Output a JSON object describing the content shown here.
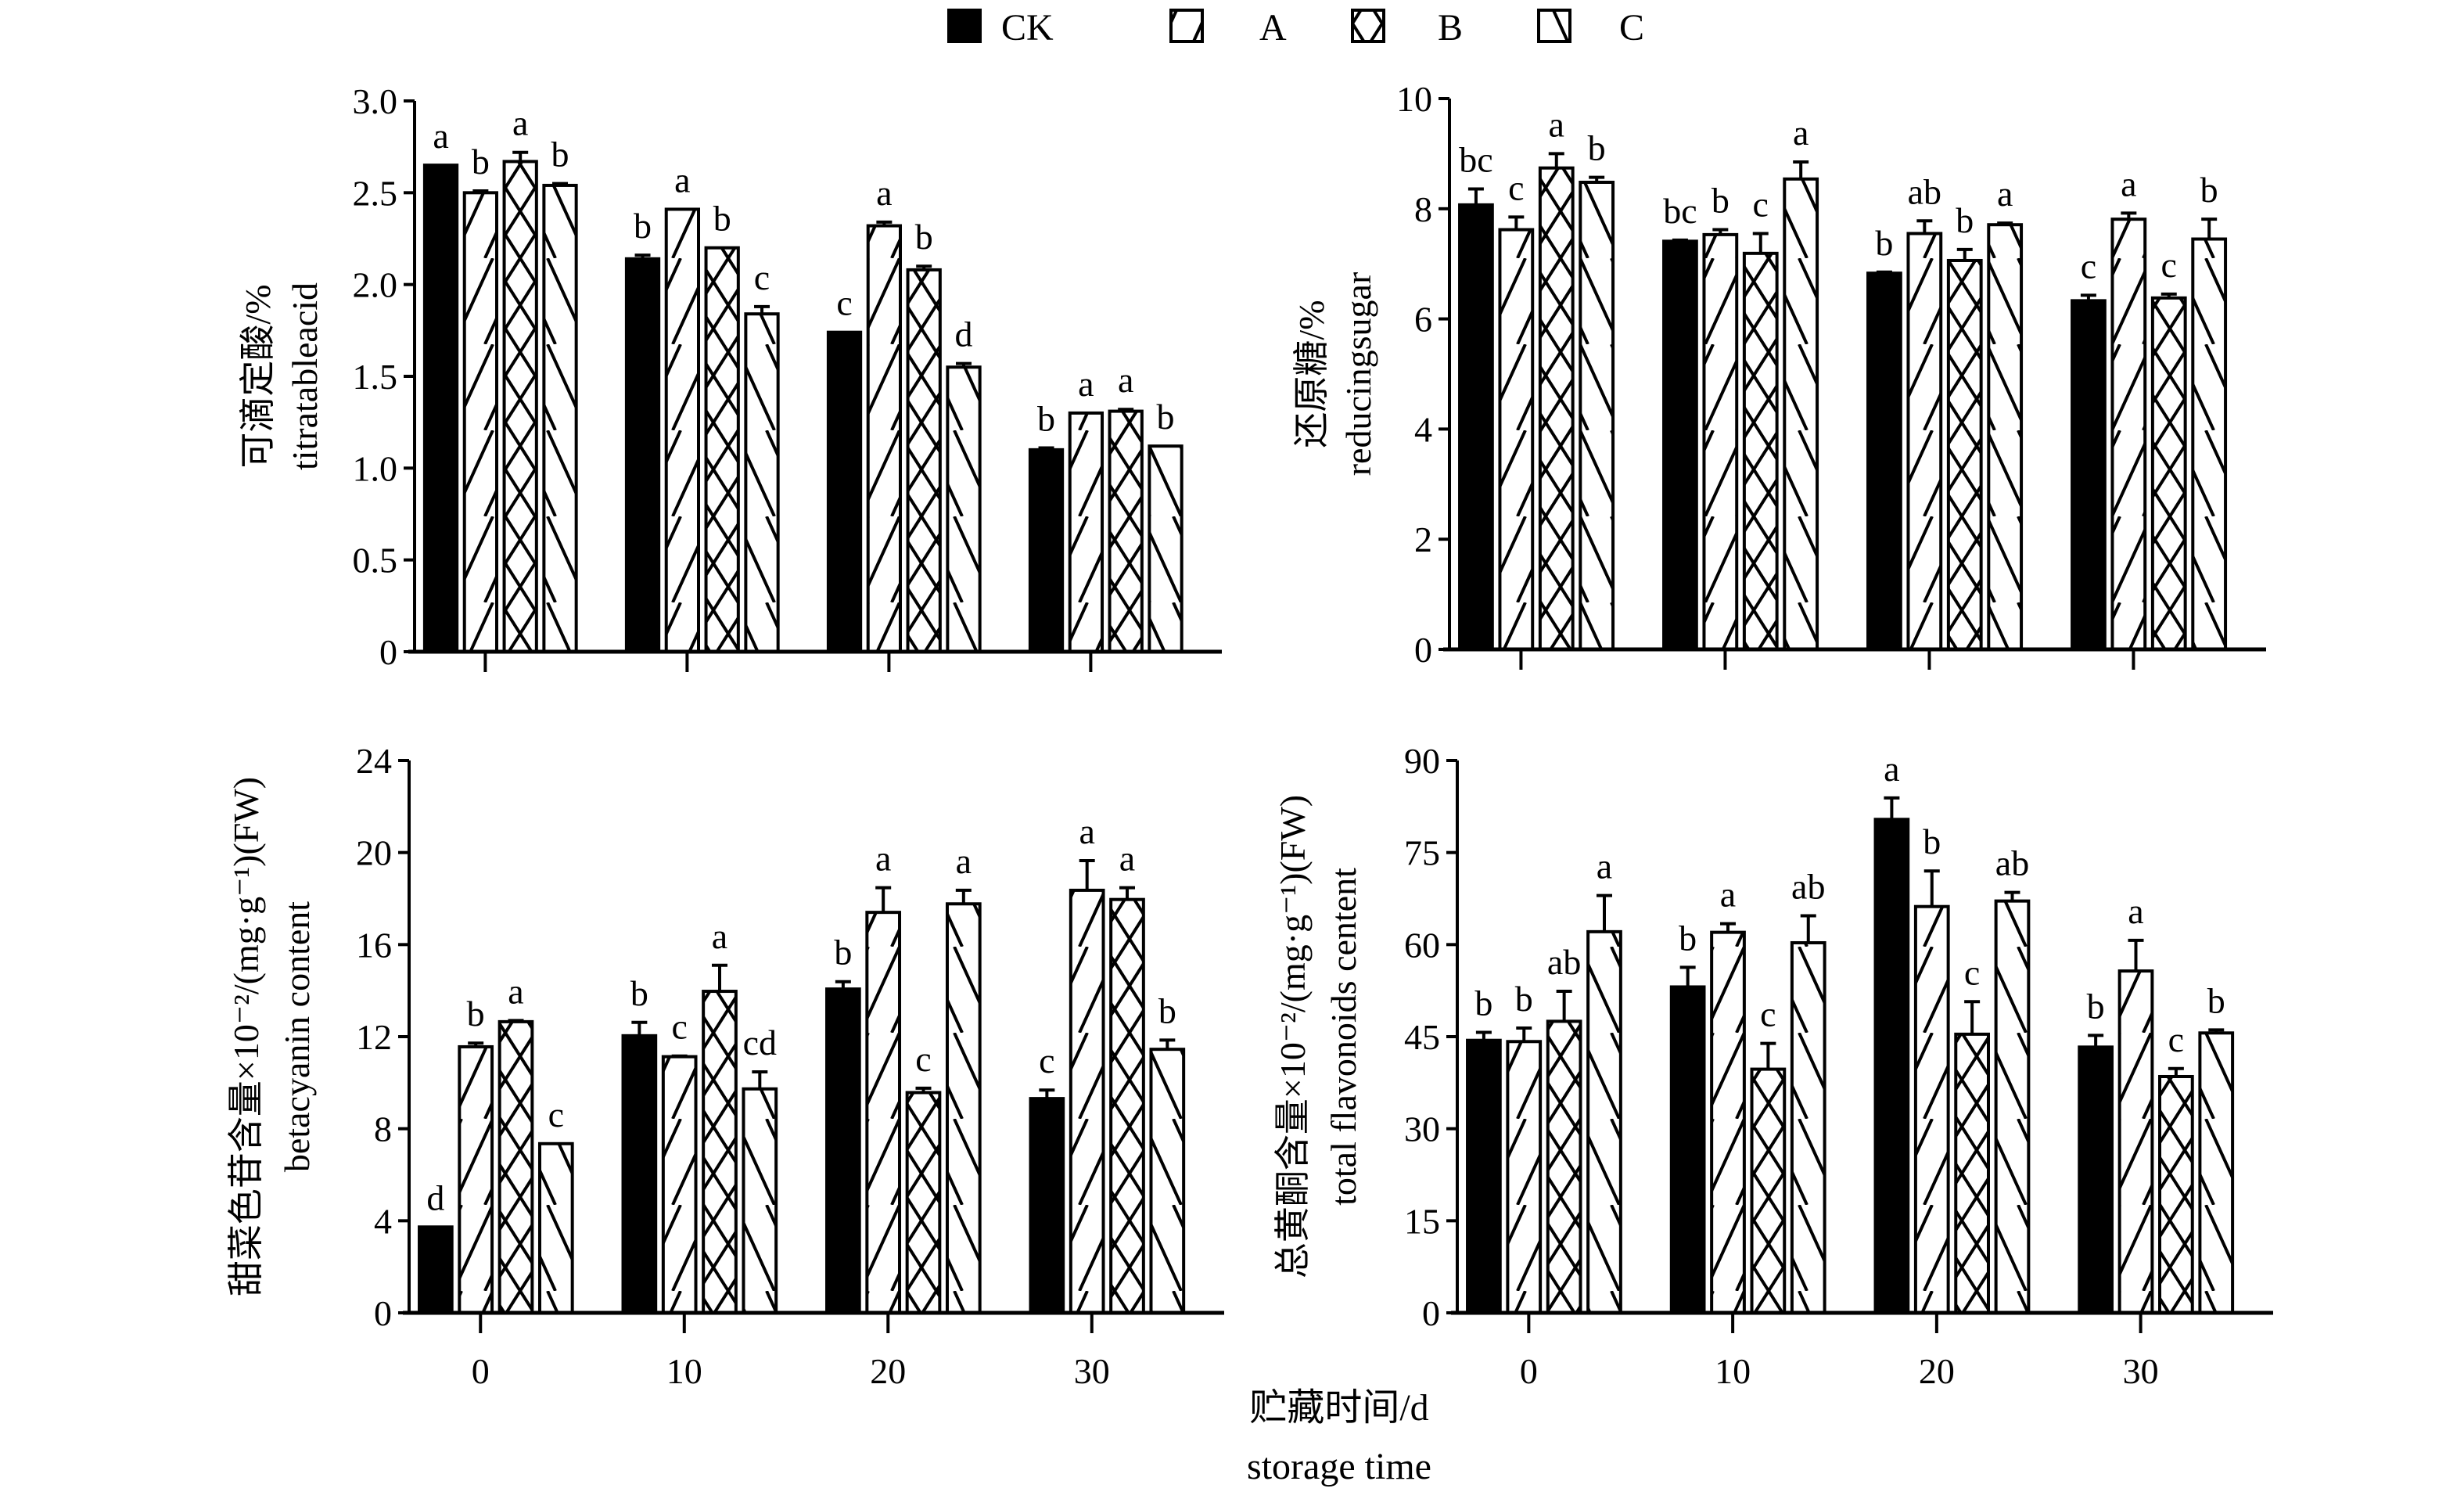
{
  "legend": {
    "items": [
      {
        "label": "CK",
        "pattern": "solid"
      },
      {
        "label": "A",
        "pattern": "forward-diagonal"
      },
      {
        "label": "B",
        "pattern": "crosshatch"
      },
      {
        "label": "C",
        "pattern": "backward-diagonal"
      }
    ]
  },
  "shared_xlabel": {
    "line1": "贮藏时间/d",
    "line2": "storage time"
  },
  "chart_data": [
    {
      "type": "bar",
      "panel": "top-left",
      "title": "",
      "ylabel_cn": "可滴定酸/%",
      "ylabel_en": "titratableacid",
      "xlabel": "",
      "categories": [
        "0",
        "10",
        "20",
        "30"
      ],
      "show_category_labels": false,
      "ylim": [
        0,
        3.0
      ],
      "yticks": [
        0,
        0.5,
        1.0,
        1.5,
        2.0,
        2.5,
        3.0
      ],
      "ytick_labels": [
        "0",
        "0.5",
        "1.0",
        "1.5",
        "2.0",
        "2.5",
        "3.0"
      ],
      "grid": false,
      "series": [
        {
          "name": "CK",
          "values": [
            2.65,
            2.14,
            1.74,
            1.1
          ],
          "errors": [
            0.0,
            0.02,
            0.0,
            0.01
          ],
          "letters": [
            "a",
            "b",
            "c",
            "b"
          ]
        },
        {
          "name": "A",
          "values": [
            2.5,
            2.41,
            2.32,
            1.3
          ],
          "errors": [
            0.01,
            0.0,
            0.02,
            0.0
          ],
          "letters": [
            "b",
            "a",
            "a",
            "a"
          ]
        },
        {
          "name": "B",
          "values": [
            2.67,
            2.2,
            2.08,
            1.31
          ],
          "errors": [
            0.05,
            0.0,
            0.02,
            0.01
          ],
          "letters": [
            "a",
            "b",
            "b",
            "a"
          ]
        },
        {
          "name": "C",
          "values": [
            2.54,
            1.84,
            1.55,
            1.12
          ],
          "errors": [
            0.01,
            0.04,
            0.02,
            0.0
          ],
          "letters": [
            "b",
            "c",
            "d",
            "b"
          ]
        }
      ]
    },
    {
      "type": "bar",
      "panel": "top-right",
      "title": "",
      "ylabel_cn": "还原糖/%",
      "ylabel_en": "reducingsugar",
      "xlabel": "",
      "categories": [
        "0",
        "10",
        "20",
        "30"
      ],
      "show_category_labels": false,
      "ylim": [
        0,
        10
      ],
      "yticks": [
        0,
        2,
        4,
        6,
        8,
        10
      ],
      "ytick_labels": [
        "0",
        "2",
        "4",
        "6",
        "8",
        "10"
      ],
      "grid": false,
      "series": [
        {
          "name": "CK",
          "values": [
            8.07,
            7.41,
            6.83,
            6.33
          ],
          "errors": [
            0.29,
            0.02,
            0.02,
            0.1
          ],
          "letters": [
            "bc",
            "bc",
            "b",
            "c"
          ]
        },
        {
          "name": "A",
          "values": [
            7.62,
            7.53,
            7.55,
            7.81
          ],
          "errors": [
            0.23,
            0.09,
            0.23,
            0.11
          ],
          "letters": [
            "c",
            "b",
            "ab",
            "a"
          ]
        },
        {
          "name": "B",
          "values": [
            8.74,
            7.19,
            7.06,
            6.38
          ],
          "errors": [
            0.26,
            0.36,
            0.2,
            0.07
          ],
          "letters": [
            "a",
            "c",
            "b",
            "c"
          ]
        },
        {
          "name": "C",
          "values": [
            8.48,
            8.54,
            7.71,
            7.45
          ],
          "errors": [
            0.09,
            0.31,
            0.03,
            0.36
          ],
          "letters": [
            "b",
            "a",
            "a",
            "b"
          ]
        }
      ]
    },
    {
      "type": "bar",
      "panel": "bottom-left",
      "title": "",
      "ylabel_cn": "甜菜色苷含量×10⁻²/(mg·g⁻¹)(FW)",
      "ylabel_en": "betacyanin content",
      "xlabel": "",
      "categories": [
        "0",
        "10",
        "20",
        "30"
      ],
      "show_category_labels": true,
      "ylim": [
        0,
        24
      ],
      "yticks": [
        0,
        4,
        8,
        12,
        16,
        20,
        24
      ],
      "ytick_labels": [
        "0",
        "4",
        "8",
        "12",
        "16",
        "20",
        "24"
      ],
      "grid": false,
      "series": [
        {
          "name": "CK",
          "values": [
            3.73,
            12.04,
            14.07,
            9.31
          ],
          "errors": [
            0.0,
            0.58,
            0.32,
            0.37
          ],
          "letters": [
            "d",
            "b",
            "b",
            "c"
          ]
        },
        {
          "name": "A",
          "values": [
            11.56,
            11.13,
            17.4,
            18.36
          ],
          "errors": [
            0.16,
            0.03,
            1.07,
            1.29
          ],
          "letters": [
            "b",
            "c",
            "a",
            "a"
          ]
        },
        {
          "name": "B",
          "values": [
            12.65,
            13.97,
            9.57,
            17.96
          ],
          "errors": [
            0.05,
            1.13,
            0.19,
            0.51
          ],
          "letters": [
            "a",
            "a",
            "c",
            "a"
          ]
        },
        {
          "name": "C",
          "values": [
            7.35,
            9.73,
            17.77,
            11.45
          ],
          "errors": [
            0.0,
            0.74,
            0.59,
            0.4
          ],
          "letters": [
            "c",
            "cd",
            "a",
            "b"
          ]
        }
      ]
    },
    {
      "type": "bar",
      "panel": "bottom-right",
      "title": "",
      "ylabel_cn": "总黄酮含量×10⁻²/(mg·g⁻¹)(FW)",
      "ylabel_en": "total flavonoids centent",
      "xlabel": "",
      "categories": [
        "0",
        "10",
        "20",
        "30"
      ],
      "show_category_labels": true,
      "ylim": [
        0,
        90
      ],
      "yticks": [
        0,
        15,
        30,
        45,
        60,
        75,
        90
      ],
      "ytick_labels": [
        "0",
        "15",
        "30",
        "45",
        "60",
        "75",
        "90"
      ],
      "grid": false,
      "series": [
        {
          "name": "CK",
          "values": [
            44.4,
            53.1,
            80.4,
            43.3
          ],
          "errors": [
            1.3,
            3.2,
            3.5,
            1.9
          ],
          "letters": [
            "b",
            "b",
            "a",
            "b"
          ]
        },
        {
          "name": "A",
          "values": [
            44.2,
            62.0,
            66.2,
            55.7
          ],
          "errors": [
            2.2,
            1.4,
            5.8,
            5.0
          ],
          "letters": [
            "b",
            "a",
            "b",
            "a"
          ]
        },
        {
          "name": "B",
          "values": [
            47.5,
            39.7,
            45.4,
            38.5
          ],
          "errors": [
            4.9,
            4.2,
            5.3,
            1.3
          ],
          "letters": [
            "ab",
            "c",
            "c",
            "c"
          ]
        },
        {
          "name": "C",
          "values": [
            62.1,
            60.3,
            67.1,
            45.6
          ],
          "errors": [
            5.9,
            4.4,
            1.4,
            0.5
          ],
          "letters": [
            "a",
            "ab",
            "ab",
            "b"
          ]
        }
      ]
    }
  ]
}
